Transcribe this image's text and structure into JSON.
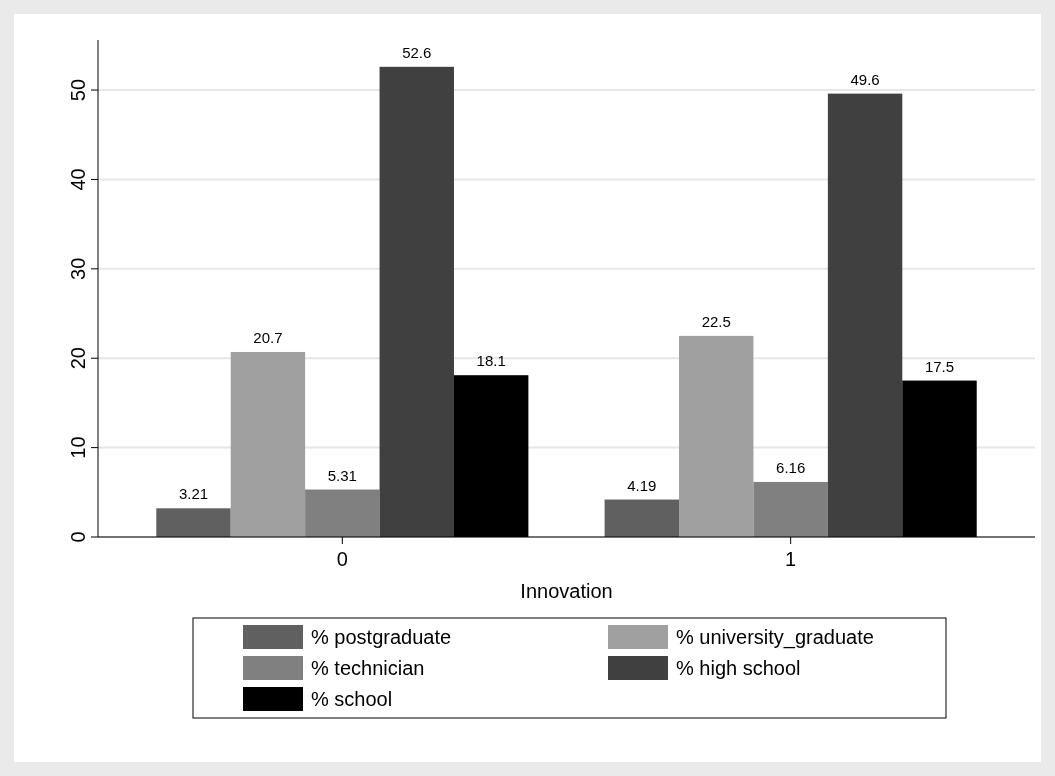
{
  "chart_data": {
    "type": "bar",
    "xlabel": "Innovation",
    "categories": [
      "0",
      "1"
    ],
    "series": [
      {
        "name": "% postgraduate",
        "color": "#606060",
        "values": [
          3.21,
          4.19
        ]
      },
      {
        "name": "% university_graduate",
        "color": "#a0a0a0",
        "values": [
          20.7,
          22.5
        ]
      },
      {
        "name": "% technician",
        "color": "#808080",
        "values": [
          5.31,
          6.16
        ]
      },
      {
        "name": "% high school",
        "color": "#404040",
        "values": [
          52.6,
          49.6
        ]
      },
      {
        "name": "% school",
        "color": "#000000",
        "values": [
          18.1,
          17.5
        ]
      }
    ],
    "ylim": [
      0,
      55.6
    ],
    "yticks": [
      0,
      10,
      20,
      30,
      40,
      50
    ],
    "grid": "y",
    "legend": "bottom",
    "data_labels": true
  }
}
